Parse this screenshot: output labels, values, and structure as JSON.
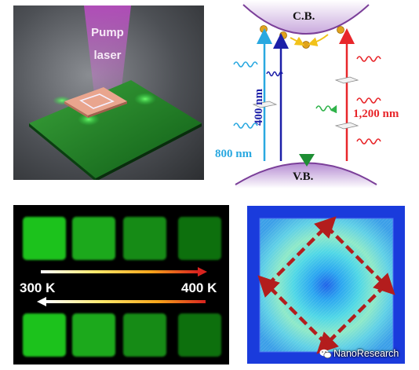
{
  "panel_a": {
    "pump_line1": "Pump",
    "pump_line2": "laser"
  },
  "panel_b": {
    "cb_label": "C.B.",
    "vb_label": "V.B.",
    "label_800": "800 nm",
    "label_400": "400 nm",
    "label_1200": "1,200 nm",
    "colors": {
      "cyan": "#29a8e0",
      "blue": "#1c1fa8",
      "green": "#2fb34a",
      "red": "#e8262a",
      "band": "#7b3f99"
    }
  },
  "panel_c": {
    "temp_low": "300 K",
    "temp_high": "400 K",
    "square_colors": [
      "#1ec21e",
      "#1aa91a",
      "#168b16",
      "#116f11"
    ]
  },
  "panel_d": {
    "watermark": "NanoResearch",
    "watermark_icon": "wechat-icon"
  }
}
